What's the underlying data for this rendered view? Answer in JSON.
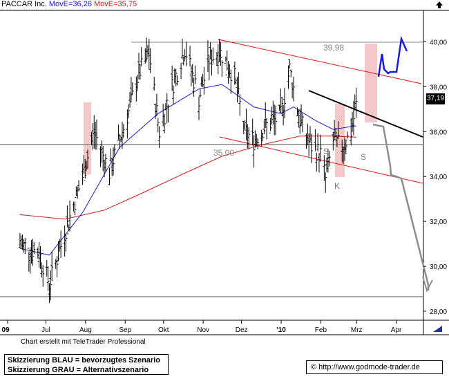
{
  "header": {
    "ticker": "PACCAR Inc.",
    "mav1_label": "MovE=36,26",
    "mav2_label": "MovE=35,75"
  },
  "last_price_tag": "37,19",
  "credit": "Chart erstellt mit TeleTrader Professional",
  "legend": {
    "line1": "Skizzierung BLAU = bevorzugtes Szenario",
    "line2": "Skizzierung GRAU = Alternativszenario"
  },
  "copyright": {
    "symbol": "©",
    "url": "http://www.godmode-trader.de"
  },
  "colors": {
    "price": "#000000",
    "mav_fast": "#1a1ad0",
    "mav_slow": "#d01818",
    "channel": "#dd1111",
    "scenario_blue": "#1818e0",
    "scenario_grey": "#8c8c8c",
    "highlight": "#f4c8c8",
    "support_line": "#8a8a8a"
  },
  "icons": [
    "up-arrow-icon",
    "trend-icon"
  ],
  "chart_data": {
    "type": "line",
    "title": "PACCAR Inc.",
    "ylim": [
      27.6,
      41.4
    ],
    "y_ticks": [
      "28,00",
      "30,00",
      "32,00",
      "34,00",
      "36,00",
      "38,00",
      "40,00"
    ],
    "x_tick_labels": [
      "09",
      "Jul",
      "Aug",
      "Sep",
      "Okt",
      "Nov",
      "Dez",
      "'10",
      "Feb",
      "Mrz",
      "Apr"
    ],
    "grid": false,
    "series": [
      {
        "name": "PACCAR Inc.",
        "style": "ohlc-bars",
        "x": [
          "2009-06-15",
          "2009-06-30",
          "2009-07-08",
          "2009-07-20",
          "2009-08-03",
          "2009-08-12",
          "2009-08-24",
          "2009-09-08",
          "2009-09-16",
          "2009-09-24",
          "2009-10-02",
          "2009-10-12",
          "2009-10-22",
          "2009-11-02",
          "2009-11-10",
          "2009-11-18",
          "2009-11-30",
          "2009-12-08",
          "2009-12-15",
          "2009-12-23",
          "2010-01-05",
          "2010-01-12",
          "2010-01-20",
          "2010-01-28",
          "2010-02-05",
          "2010-02-09",
          "2010-02-15",
          "2010-02-22",
          "2010-03-01",
          "2010-03-05"
        ],
        "y": [
          31.0,
          30.6,
          29.2,
          31.5,
          34.0,
          36.0,
          34.2,
          36.9,
          38.6,
          39.5,
          36.0,
          38.0,
          39.7,
          37.5,
          39.2,
          39.6,
          38.4,
          36.0,
          35.6,
          36.2,
          36.7,
          38.8,
          36.5,
          35.4,
          35.0,
          33.9,
          35.6,
          35.3,
          36.0,
          37.19
        ]
      },
      {
        "name": "MovE=36,26",
        "x": [
          "2009-06-15",
          "2009-07-08",
          "2009-08-03",
          "2009-09-01",
          "2009-10-01",
          "2009-11-02",
          "2009-11-20",
          "2009-12-15",
          "2010-01-05",
          "2010-01-15",
          "2010-02-01",
          "2010-02-15",
          "2010-03-05"
        ],
        "y": [
          30.8,
          30.5,
          32.4,
          35.3,
          36.8,
          37.9,
          38.1,
          37.1,
          36.8,
          37.1,
          36.5,
          36.1,
          36.26
        ]
      },
      {
        "name": "MovE=35,75",
        "x": [
          "2009-06-15",
          "2009-07-20",
          "2009-08-20",
          "2009-09-20",
          "2009-10-20",
          "2009-11-20",
          "2009-12-20",
          "2010-01-20",
          "2010-02-15",
          "2010-03-05"
        ],
        "y": [
          32.3,
          32.1,
          32.5,
          33.3,
          34.1,
          34.9,
          35.4,
          35.8,
          35.8,
          35.75
        ]
      }
    ],
    "lines": [
      {
        "label": "39,98",
        "y": 39.98
      },
      {
        "label": "35,00",
        "y": 35.0
      },
      {
        "label": "",
        "y": 28.5
      }
    ],
    "annotations": [
      "39,98",
      "35,00",
      "S",
      "K",
      "S"
    ]
  }
}
